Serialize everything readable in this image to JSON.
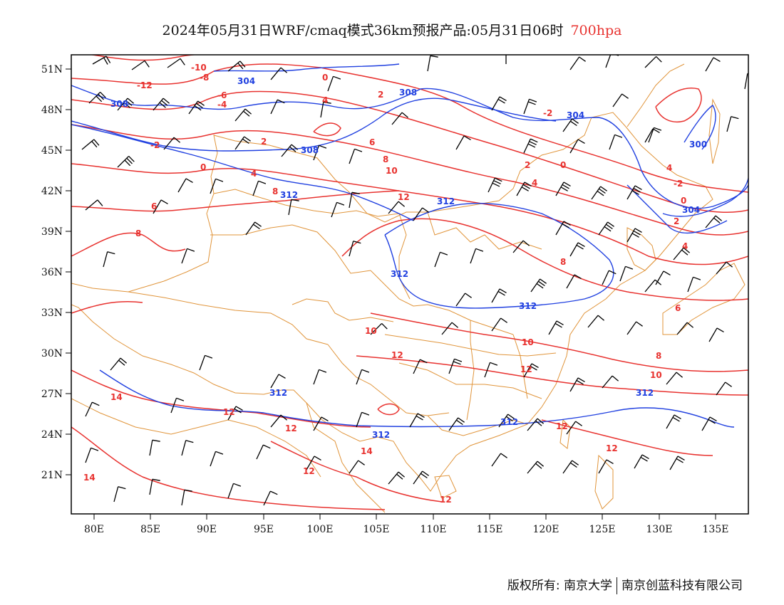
{
  "title": {
    "main": "2024年05月31日WRF/cmaq模式36km预报产品:05月31日06时",
    "level": "700hpa"
  },
  "axes": {
    "lat_ticks": [
      "21N",
      "24N",
      "27N",
      "30N",
      "33N",
      "36N",
      "39N",
      "42N",
      "45N",
      "48N",
      "51N"
    ],
    "lon_ticks": [
      "80E",
      "85E",
      "90E",
      "95E",
      "100E",
      "105E",
      "110E",
      "115E",
      "120E",
      "125E",
      "130E",
      "135E"
    ]
  },
  "colors": {
    "geopotential_contour": "#2040e0",
    "temperature_contour": "#e8322f",
    "boundary": "#e0943a",
    "wind_barb": "#000000"
  },
  "temperature_labels": [
    "-12",
    "-10",
    "-8",
    "-6",
    "-4",
    "-2",
    "0",
    "2",
    "4",
    "6",
    "8",
    "10",
    "12",
    "14"
  ],
  "geopotential_labels": [
    "300",
    "304",
    "308",
    "312"
  ],
  "footer": {
    "copyright": "版权所有: 南京大学",
    "company": "南京创蓝科技有限公司"
  }
}
